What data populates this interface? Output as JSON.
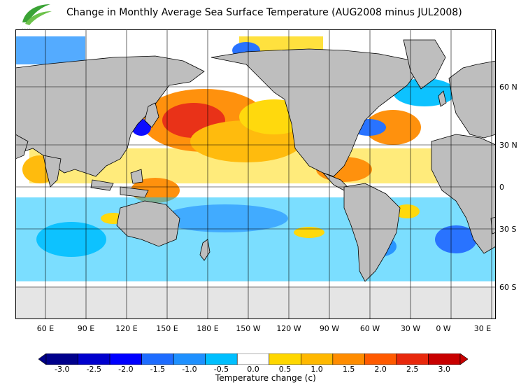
{
  "title": "Change in Monthly Average Sea Surface Temperature (AUG2008 minus JUL2008)",
  "logo": {
    "icon": "hko-logo-icon",
    "color": "#3aa335"
  },
  "map": {
    "land_color": "#bebebe",
    "ice_color": "#e5e5e5",
    "latitude_labels": [
      "60 N",
      "30 N",
      "0",
      "30 S",
      "60 S"
    ],
    "longitude_labels": [
      "60 E",
      "90 E",
      "120 E",
      "150 E",
      "180 E",
      "150 W",
      "120 W",
      "90 W",
      "60 W",
      "30 W",
      "0 W",
      "30 E"
    ]
  },
  "colorbar": {
    "title": "Temperature change  (c)",
    "ticks": [
      "-3.0",
      "-2.5",
      "-2.0",
      "-1.5",
      "-1.0",
      "-0.5",
      "0.0",
      "0.5",
      "1.0",
      "1.5",
      "2.0",
      "2.5",
      "3.0"
    ],
    "colors": [
      "#00008b",
      "#0000cd",
      "#0000ff",
      "#1e6cff",
      "#1e90ff",
      "#00bfff",
      "#ffffff",
      "#ffd700",
      "#ffb800",
      "#ff8c00",
      "#ff5a00",
      "#e8280c",
      "#c80000"
    ]
  }
}
